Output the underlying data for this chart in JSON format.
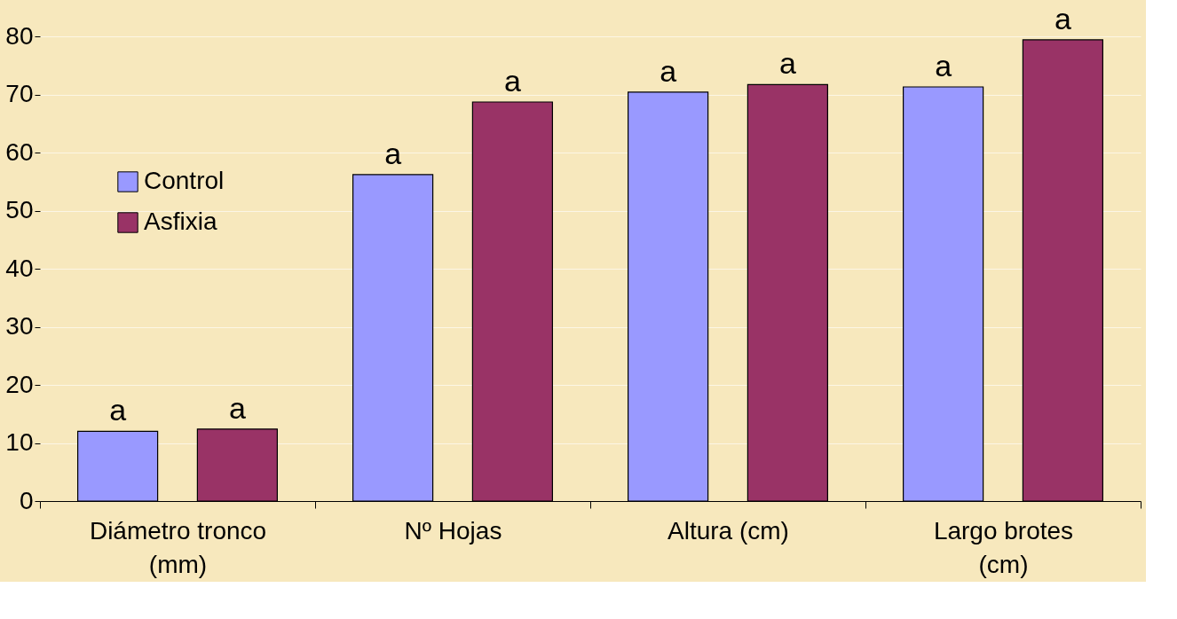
{
  "chart_data": {
    "type": "bar",
    "categories": [
      "Diámetro tronco (mm)",
      "Nº Hojas",
      "Altura (cm)",
      "Largo brotes (cm)"
    ],
    "series": [
      {
        "name": "Control",
        "color": "#9999ff",
        "values": [
          12.0,
          56.2,
          70.4,
          71.3
        ],
        "value_labels": [
          "a",
          "a",
          "a",
          "a"
        ]
      },
      {
        "name": "Asfixia",
        "color": "#993366",
        "values": [
          12.4,
          68.7,
          71.7,
          79.4
        ],
        "value_labels": [
          "a",
          "a",
          "a",
          "a"
        ]
      }
    ],
    "ylim": [
      0,
      80
    ],
    "yticks": [
      0,
      10,
      20,
      30,
      40,
      50,
      60,
      70,
      80
    ],
    "grid": "y",
    "legend": "left"
  }
}
